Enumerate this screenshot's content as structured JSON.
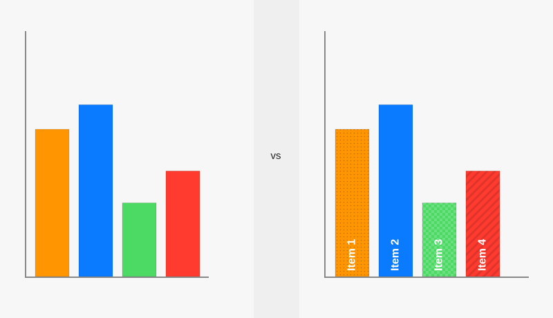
{
  "chart_data": [
    {
      "type": "bar",
      "categories": [
        null,
        null,
        null,
        null
      ],
      "values": [
        60,
        70,
        30,
        43
      ],
      "colors": [
        "#ff9500",
        "#0a7aff",
        "#4cd964",
        "#ff3b30"
      ],
      "ylim": [
        0,
        100
      ]
    },
    {
      "type": "bar",
      "categories": [
        "Item 1",
        "Item 2",
        "Item 3",
        "Item 4"
      ],
      "values": [
        60,
        70,
        30,
        43
      ],
      "colors": [
        "#ff9500",
        "#0a7aff",
        "#4cd964",
        "#ff3b30"
      ],
      "patterns": [
        "dots",
        "none",
        "checker",
        "stripes"
      ],
      "ylim": [
        0,
        100
      ]
    }
  ],
  "label": "vs"
}
